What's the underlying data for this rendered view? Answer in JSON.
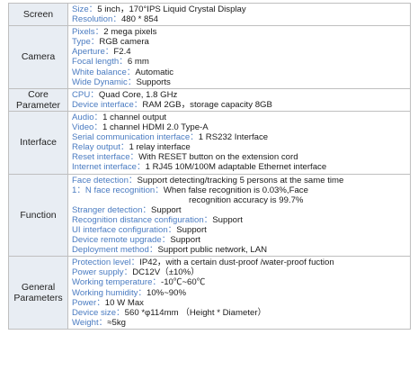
{
  "sections": [
    {
      "header": "Screen",
      "rows": [
        {
          "key": "Size：",
          "value": "5 inch，170°IPS Liquid Crystal Display"
        },
        {
          "key": "Resolution：",
          "value": "480 * 854"
        }
      ]
    },
    {
      "header": "Camera",
      "rows": [
        {
          "key": "Pixels：",
          "value": "2 mega pixels"
        },
        {
          "key": "Type：",
          "value": "RGB camera"
        },
        {
          "key": "Aperture：",
          "value": "F2.4"
        },
        {
          "key": "Focal length：",
          "value": "6 mm"
        },
        {
          "key": "White balance：",
          "value": "Automatic"
        },
        {
          "key": "Wide Dynamic：",
          "value": "Supports"
        }
      ]
    },
    {
      "header": "Core Parameter",
      "rows": [
        {
          "key": "CPU：",
          "value": "Quad Core, 1.8 GHz"
        },
        {
          "key": "Device interface：",
          "value": "RAM 2GB，storage capacity 8GB"
        }
      ]
    },
    {
      "header": "Interface",
      "rows": [
        {
          "key": "Audio：",
          "value": "1 channel output"
        },
        {
          "key": "Video：",
          "value": "1 channel HDMI 2.0 Type-A"
        },
        {
          "key": "Serial communication interface：",
          "value": "1 RS232 Interface"
        },
        {
          "key": "Relay output：",
          "value": "1 relay interface"
        },
        {
          "key": "Reset interface：",
          "value": "With RESET button on the extension cord"
        },
        {
          "key": "Internet interface：",
          "value": "1 RJ45 10M/100M adaptable Ethernet interface"
        }
      ]
    },
    {
      "header": "Function",
      "rows": [
        {
          "key": "Face detection：",
          "value": "Support detecting/tracking 5 persons at the same time"
        },
        {
          "key": "1：N face recognition：",
          "value": "When false recognition is 0.03%,Face"
        },
        {
          "key": "",
          "value": "recognition accuracy is 99.7%",
          "indent": true
        },
        {
          "key": "Stranger detection：",
          "value": "Support"
        },
        {
          "key": "Recognition distance configuration：",
          "value": "Support"
        },
        {
          "key": "UI interface configuration：",
          "value": "Support"
        },
        {
          "key": "Device remote upgrade：",
          "value": "Support"
        },
        {
          "key": "Deployment method：",
          "value": "Support public network, LAN"
        }
      ]
    },
    {
      "header": "General Parameters",
      "rows": [
        {
          "key": "Protection level：",
          "value": "IP42，with a certain dust-proof /water-proof fuction"
        },
        {
          "key": "Power supply：",
          "value": "DC12V（±10%）"
        },
        {
          "key": "Working temperature：",
          "value": "-10℃~60℃"
        },
        {
          "key": "Working humidity：",
          "value": "10%~90%"
        },
        {
          "key": "Power：",
          "value": "10 W Max"
        },
        {
          "key": "Device size：",
          "value": "560 *φ114mm （Height * Diameter）"
        },
        {
          "key": "Weight：",
          "value": "≈5kg"
        }
      ]
    }
  ]
}
